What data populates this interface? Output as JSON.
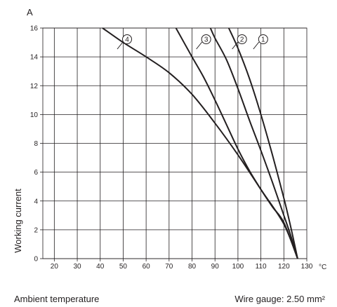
{
  "chart_data": {
    "type": "line",
    "title": "",
    "xlabel": "Ambient temperature",
    "ylabel": "Working current",
    "x_unit": "°C",
    "y_unit": "A",
    "note": "Wire gauge: 2.50 mm²",
    "xlim": [
      15,
      130
    ],
    "ylim": [
      0,
      16
    ],
    "x_ticks": [
      20,
      30,
      40,
      50,
      60,
      70,
      80,
      90,
      100,
      110,
      120,
      130
    ],
    "y_ticks": [
      0,
      2,
      4,
      6,
      8,
      10,
      12,
      14,
      16
    ],
    "grid": true,
    "series": [
      {
        "name": "1",
        "points": [
          [
            96,
            16
          ],
          [
            100,
            14.6
          ],
          [
            105,
            12.5
          ],
          [
            110,
            10
          ],
          [
            115,
            7.2
          ],
          [
            120,
            4.2
          ],
          [
            123,
            2.2
          ],
          [
            126,
            0
          ]
        ]
      },
      {
        "name": "2",
        "points": [
          [
            88,
            16
          ],
          [
            90,
            15.3
          ],
          [
            95,
            13.8
          ],
          [
            100,
            11.8
          ],
          [
            105,
            9.6
          ],
          [
            110,
            7.5
          ],
          [
            115,
            5.3
          ],
          [
            120,
            3
          ],
          [
            123,
            1.6
          ],
          [
            126,
            0
          ]
        ]
      },
      {
        "name": "3",
        "points": [
          [
            73,
            16
          ],
          [
            80,
            14
          ],
          [
            85,
            12.6
          ],
          [
            90,
            11
          ],
          [
            95,
            9.3
          ],
          [
            100,
            7.6
          ],
          [
            105,
            6.1
          ],
          [
            110,
            4.8
          ],
          [
            115,
            3.6
          ],
          [
            120,
            2.5
          ],
          [
            126,
            0
          ]
        ]
      },
      {
        "name": "4",
        "points": [
          [
            41,
            16
          ],
          [
            50,
            15
          ],
          [
            60,
            14
          ],
          [
            70,
            12.9
          ],
          [
            80,
            11.4
          ],
          [
            90,
            9.4
          ],
          [
            100,
            7.2
          ],
          [
            110,
            4.8
          ],
          [
            120,
            2.4
          ],
          [
            126,
            0
          ]
        ]
      }
    ]
  }
}
